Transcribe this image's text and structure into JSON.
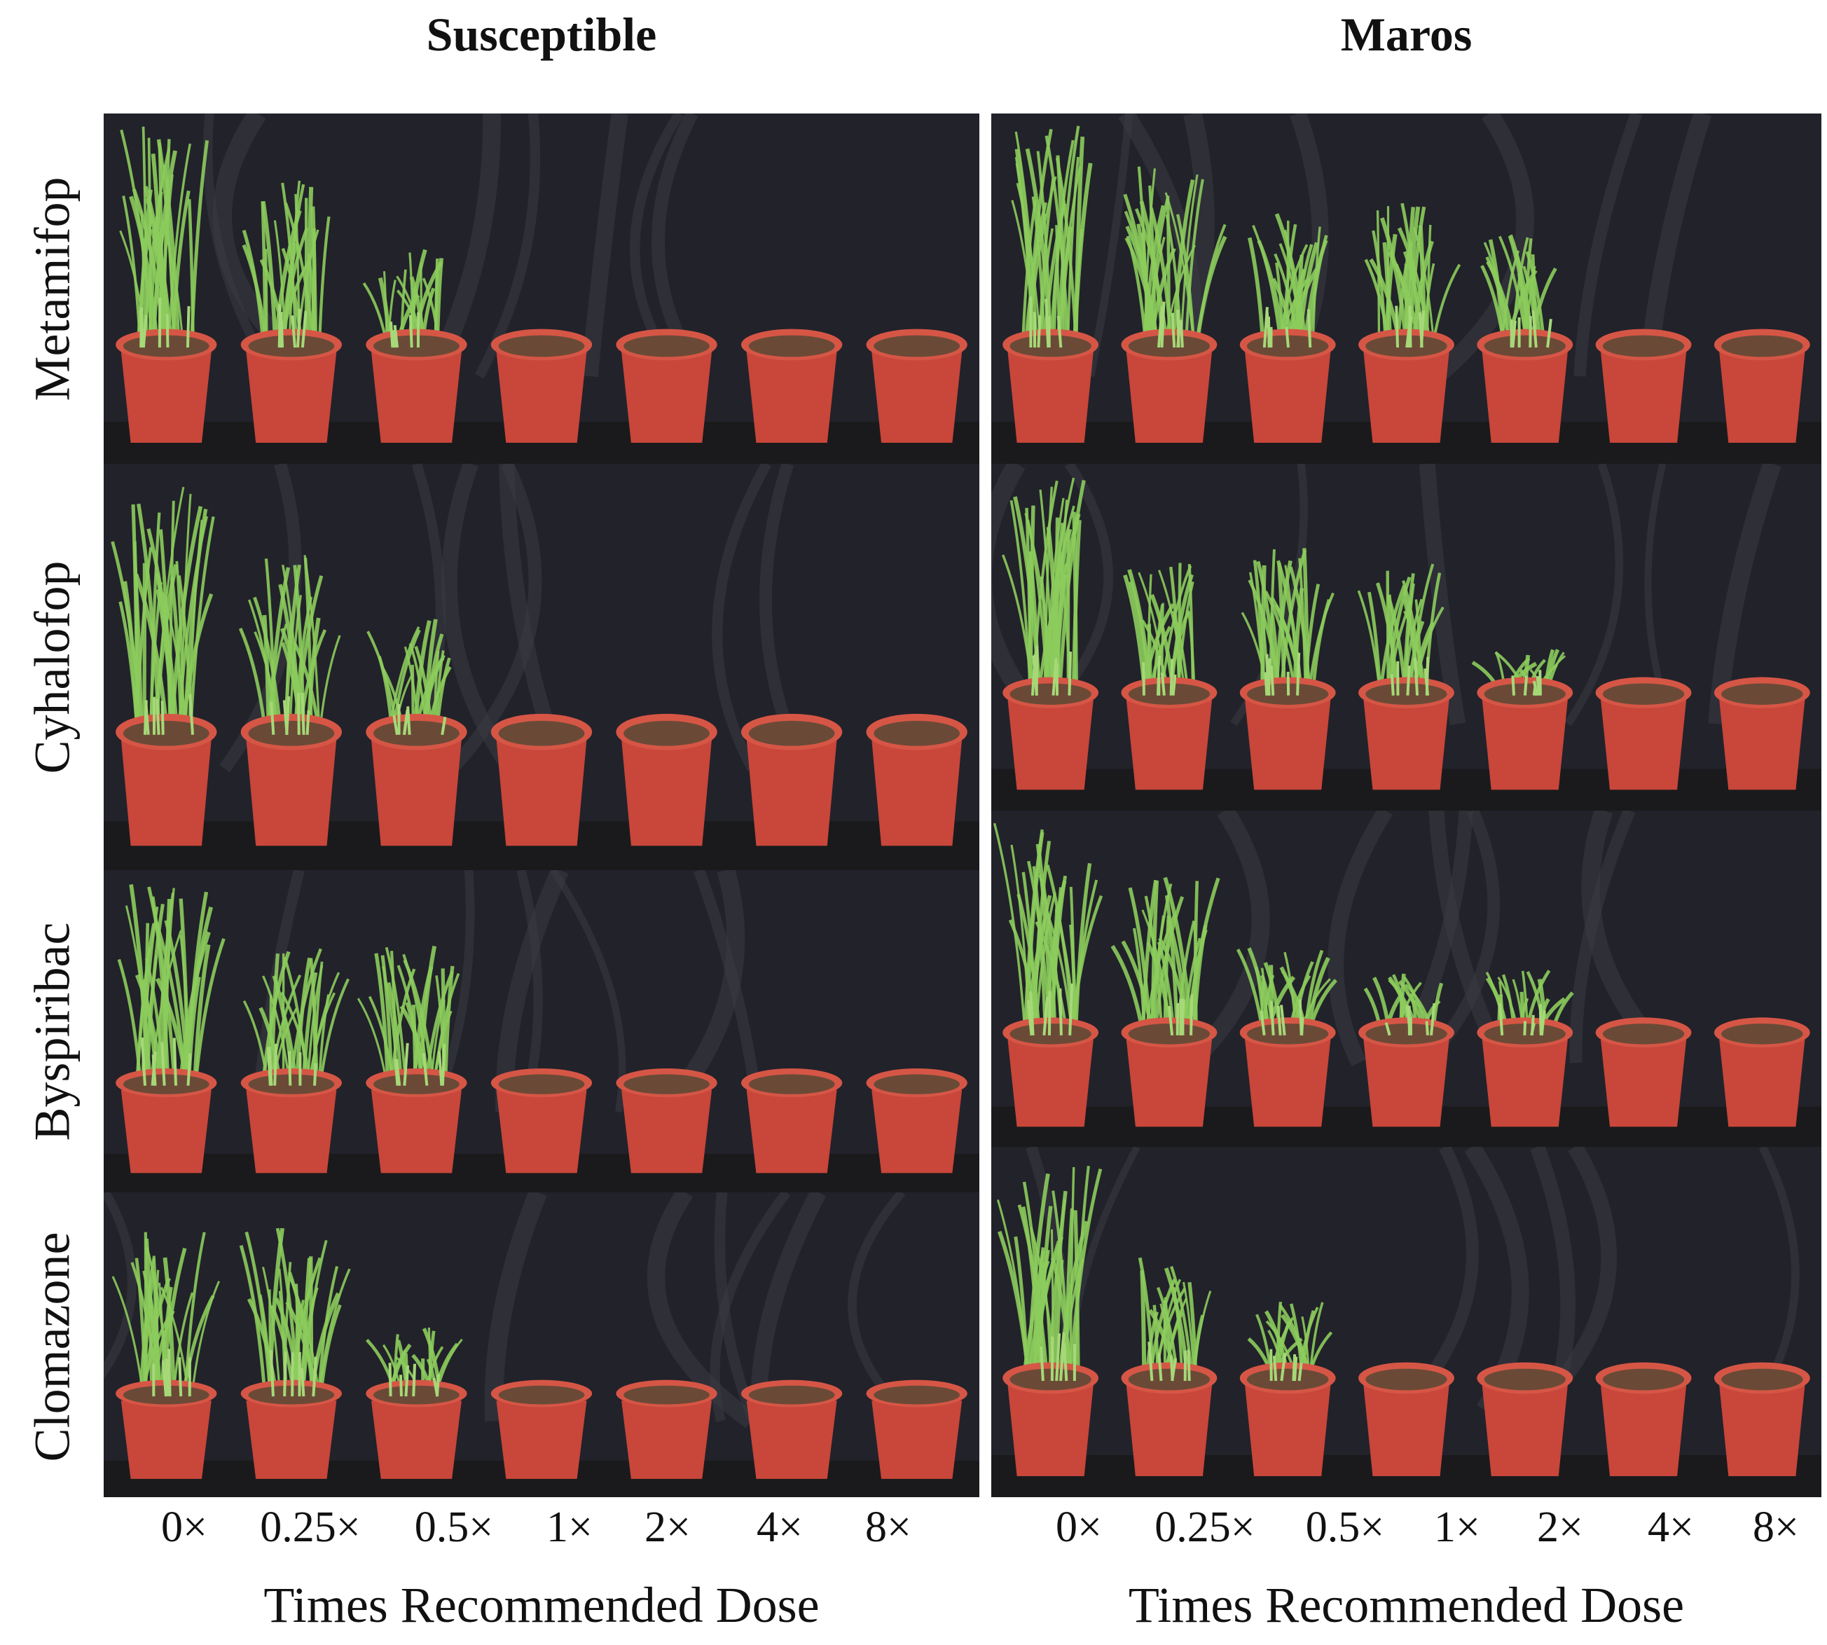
{
  "columns": [
    {
      "title": "Susceptible"
    },
    {
      "title": "Maros"
    }
  ],
  "rows": [
    {
      "label": "Metamifop"
    },
    {
      "label": "Cyhalofop"
    },
    {
      "label": "Byspiribac"
    },
    {
      "label": "Clomazone"
    }
  ],
  "doses": [
    "0×",
    "0.25×",
    "0.5×",
    "1×",
    "2×",
    "4×",
    "8×"
  ],
  "axis_title": "Times Recommended Dose",
  "colors": {
    "backdrop": "#22222a",
    "pot": "#c8463a",
    "pot_rim": "#d65646",
    "soil": "#6a4a36",
    "grass": "#8ccc5c"
  },
  "growth_levels": {
    "susceptible": [
      [
        1.0,
        0.75,
        0.45,
        0,
        0,
        0,
        0
      ],
      [
        1.0,
        0.7,
        0.45,
        0,
        0,
        0,
        0
      ],
      [
        1.0,
        0.7,
        0.7,
        0,
        0,
        0,
        0
      ],
      [
        0.85,
        0.9,
        0.35,
        0,
        0,
        0,
        0
      ]
    ],
    "maros": [
      [
        1.0,
        0.85,
        0.6,
        0.7,
        0.5,
        0,
        0
      ],
      [
        1.0,
        0.6,
        0.7,
        0.6,
        0.2,
        0,
        0
      ],
      [
        1.0,
        0.8,
        0.45,
        0.3,
        0.3,
        0,
        0
      ],
      [
        1.0,
        0.55,
        0.35,
        0,
        0,
        0,
        0
      ]
    ]
  }
}
